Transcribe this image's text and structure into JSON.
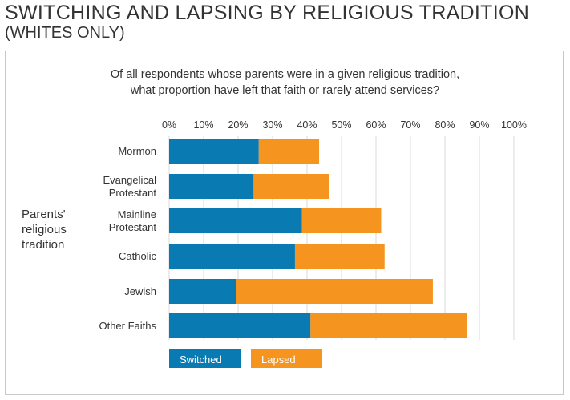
{
  "title": "SWITCHING AND LAPSING BY RELIGIOUS TRADITION",
  "subtitle": "(WHITES ONLY)",
  "question_line1": "Of all respondents whose parents were in a given religious tradition,",
  "question_line2": "what proportion have left that faith or rarely attend services?",
  "y_axis_title": [
    "Parents'",
    "religious",
    "tradition"
  ],
  "colors": {
    "switched": "#0a7ab3",
    "lapsed": "#f5951f",
    "grid": "#d9d9d9"
  },
  "chart_data": {
    "type": "bar",
    "orientation": "horizontal",
    "stacked": true,
    "categories": [
      [
        "Mormon"
      ],
      [
        "Evangelical",
        "Protestant"
      ],
      [
        "Mainline",
        "Protestant"
      ],
      [
        "Catholic"
      ],
      [
        "Jewish"
      ],
      [
        "Other Faiths"
      ]
    ],
    "series": [
      {
        "name": "Switched",
        "values": [
          26,
          24.5,
          38.5,
          36.5,
          19.5,
          41
        ]
      },
      {
        "name": "Lapsed",
        "values": [
          17.5,
          22,
          23,
          26,
          57,
          45.5
        ]
      }
    ],
    "x_ticks": [
      "0%",
      "10%",
      "20%",
      "30%",
      "40%",
      "50%",
      "60%",
      "70%",
      "80%",
      "90%",
      "100%"
    ],
    "xlim": [
      0,
      100
    ],
    "grid": "vertical",
    "legend_position": "bottom-left"
  }
}
